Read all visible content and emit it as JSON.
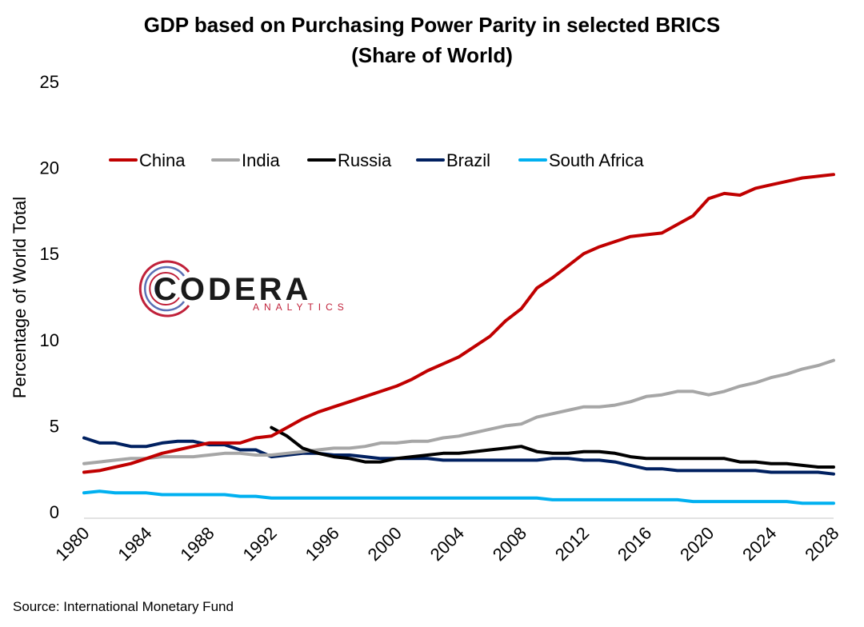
{
  "chart_data": {
    "type": "line",
    "title": "GDP based on Purchasing Power Parity in selected BRICS",
    "subtitle": "(Share of World)",
    "xlabel": "",
    "ylabel": "Percentage of World Total",
    "ylim": [
      0,
      25
    ],
    "yticks": [
      "0",
      "5",
      "10",
      "15",
      "20",
      "25"
    ],
    "xlim": [
      1980,
      2028
    ],
    "xticks": [
      "1980",
      "1984",
      "1988",
      "1992",
      "1996",
      "2000",
      "2004",
      "2008",
      "2012",
      "2016",
      "2020",
      "2024",
      "2028"
    ],
    "legend_position": "top",
    "grid": false,
    "series": [
      {
        "name": "China",
        "color": "#c00000",
        "x": [
          1980,
          1981,
          1982,
          1983,
          1984,
          1985,
          1986,
          1987,
          1988,
          1989,
          1990,
          1991,
          1992,
          1993,
          1994,
          1995,
          1996,
          1997,
          1998,
          1999,
          2000,
          2001,
          2002,
          2003,
          2004,
          2005,
          2006,
          2007,
          2008,
          2009,
          2010,
          2011,
          2012,
          2013,
          2014,
          2015,
          2016,
          2017,
          2018,
          2019,
          2020,
          2021,
          2022,
          2023,
          2024,
          2025,
          2026,
          2027,
          2028
        ],
        "values": [
          2.3,
          2.4,
          2.6,
          2.8,
          3.1,
          3.4,
          3.6,
          3.8,
          4.0,
          4.0,
          4.0,
          4.3,
          4.4,
          4.9,
          5.4,
          5.8,
          6.1,
          6.4,
          6.7,
          7.0,
          7.3,
          7.7,
          8.2,
          8.6,
          9.0,
          9.6,
          10.2,
          11.1,
          11.8,
          13.0,
          13.6,
          14.3,
          15.0,
          15.4,
          15.7,
          16.0,
          16.1,
          16.2,
          16.7,
          17.2,
          18.2,
          18.5,
          18.4,
          18.8,
          19.0,
          19.2,
          19.4,
          19.5,
          19.6
        ]
      },
      {
        "name": "India",
        "color": "#a6a6a6",
        "x": [
          1980,
          1981,
          1982,
          1983,
          1984,
          1985,
          1986,
          1987,
          1988,
          1989,
          1990,
          1991,
          1992,
          1993,
          1994,
          1995,
          1996,
          1997,
          1998,
          1999,
          2000,
          2001,
          2002,
          2003,
          2004,
          2005,
          2006,
          2007,
          2008,
          2009,
          2010,
          2011,
          2012,
          2013,
          2014,
          2015,
          2016,
          2017,
          2018,
          2019,
          2020,
          2021,
          2022,
          2023,
          2024,
          2025,
          2026,
          2027,
          2028
        ],
        "values": [
          2.8,
          2.9,
          3.0,
          3.1,
          3.1,
          3.2,
          3.2,
          3.2,
          3.3,
          3.4,
          3.4,
          3.3,
          3.3,
          3.4,
          3.5,
          3.6,
          3.7,
          3.7,
          3.8,
          4.0,
          4.0,
          4.1,
          4.1,
          4.3,
          4.4,
          4.6,
          4.8,
          5.0,
          5.1,
          5.5,
          5.7,
          5.9,
          6.1,
          6.1,
          6.2,
          6.4,
          6.7,
          6.8,
          7.0,
          7.0,
          6.8,
          7.0,
          7.3,
          7.5,
          7.8,
          8.0,
          8.3,
          8.5,
          8.8
        ]
      },
      {
        "name": "Russia",
        "color": "#000000",
        "x": [
          1992,
          1993,
          1994,
          1995,
          1996,
          1997,
          1998,
          1999,
          2000,
          2001,
          2002,
          2003,
          2004,
          2005,
          2006,
          2007,
          2008,
          2009,
          2010,
          2011,
          2012,
          2013,
          2014,
          2015,
          2016,
          2017,
          2018,
          2019,
          2020,
          2021,
          2022,
          2023,
          2024,
          2025,
          2026,
          2027,
          2028
        ],
        "values": [
          4.9,
          4.4,
          3.7,
          3.4,
          3.2,
          3.1,
          2.9,
          2.9,
          3.1,
          3.2,
          3.3,
          3.4,
          3.4,
          3.5,
          3.6,
          3.7,
          3.8,
          3.5,
          3.4,
          3.4,
          3.5,
          3.5,
          3.4,
          3.2,
          3.1,
          3.1,
          3.1,
          3.1,
          3.1,
          3.1,
          2.9,
          2.9,
          2.8,
          2.8,
          2.7,
          2.6,
          2.6
        ]
      },
      {
        "name": "Brazil",
        "color": "#002060",
        "x": [
          1980,
          1981,
          1982,
          1983,
          1984,
          1985,
          1986,
          1987,
          1988,
          1989,
          1990,
          1991,
          1992,
          1993,
          1994,
          1995,
          1996,
          1997,
          1998,
          1999,
          2000,
          2001,
          2002,
          2003,
          2004,
          2005,
          2006,
          2007,
          2008,
          2009,
          2010,
          2011,
          2012,
          2013,
          2014,
          2015,
          2016,
          2017,
          2018,
          2019,
          2020,
          2021,
          2022,
          2023,
          2024,
          2025,
          2026,
          2027,
          2028
        ],
        "values": [
          4.3,
          4.0,
          4.0,
          3.8,
          3.8,
          4.0,
          4.1,
          4.1,
          3.9,
          3.9,
          3.6,
          3.6,
          3.2,
          3.3,
          3.4,
          3.4,
          3.3,
          3.3,
          3.2,
          3.1,
          3.1,
          3.1,
          3.1,
          3.0,
          3.0,
          3.0,
          3.0,
          3.0,
          3.0,
          3.0,
          3.1,
          3.1,
          3.0,
          3.0,
          2.9,
          2.7,
          2.5,
          2.5,
          2.4,
          2.4,
          2.4,
          2.4,
          2.4,
          2.4,
          2.3,
          2.3,
          2.3,
          2.3,
          2.2
        ]
      },
      {
        "name": "South Africa",
        "color": "#00b0f0",
        "x": [
          1980,
          1981,
          1982,
          1983,
          1984,
          1985,
          1986,
          1987,
          1988,
          1989,
          1990,
          1991,
          1992,
          1993,
          1994,
          1995,
          1996,
          1997,
          1998,
          1999,
          2000,
          2001,
          2002,
          2003,
          2004,
          2005,
          2006,
          2007,
          2008,
          2009,
          2010,
          2011,
          2012,
          2013,
          2014,
          2015,
          2016,
          2017,
          2018,
          2019,
          2020,
          2021,
          2022,
          2023,
          2024,
          2025,
          2026,
          2027,
          2028
        ],
        "values": [
          1.1,
          1.2,
          1.1,
          1.1,
          1.1,
          1.0,
          1.0,
          1.0,
          1.0,
          1.0,
          0.9,
          0.9,
          0.8,
          0.8,
          0.8,
          0.8,
          0.8,
          0.8,
          0.8,
          0.8,
          0.8,
          0.8,
          0.8,
          0.8,
          0.8,
          0.8,
          0.8,
          0.8,
          0.8,
          0.8,
          0.7,
          0.7,
          0.7,
          0.7,
          0.7,
          0.7,
          0.7,
          0.7,
          0.7,
          0.6,
          0.6,
          0.6,
          0.6,
          0.6,
          0.6,
          0.6,
          0.5,
          0.5,
          0.5
        ]
      }
    ]
  },
  "logo": {
    "word": "CODERA",
    "sub": "ANALYTICS"
  },
  "source": "Source: International Monetary Fund"
}
